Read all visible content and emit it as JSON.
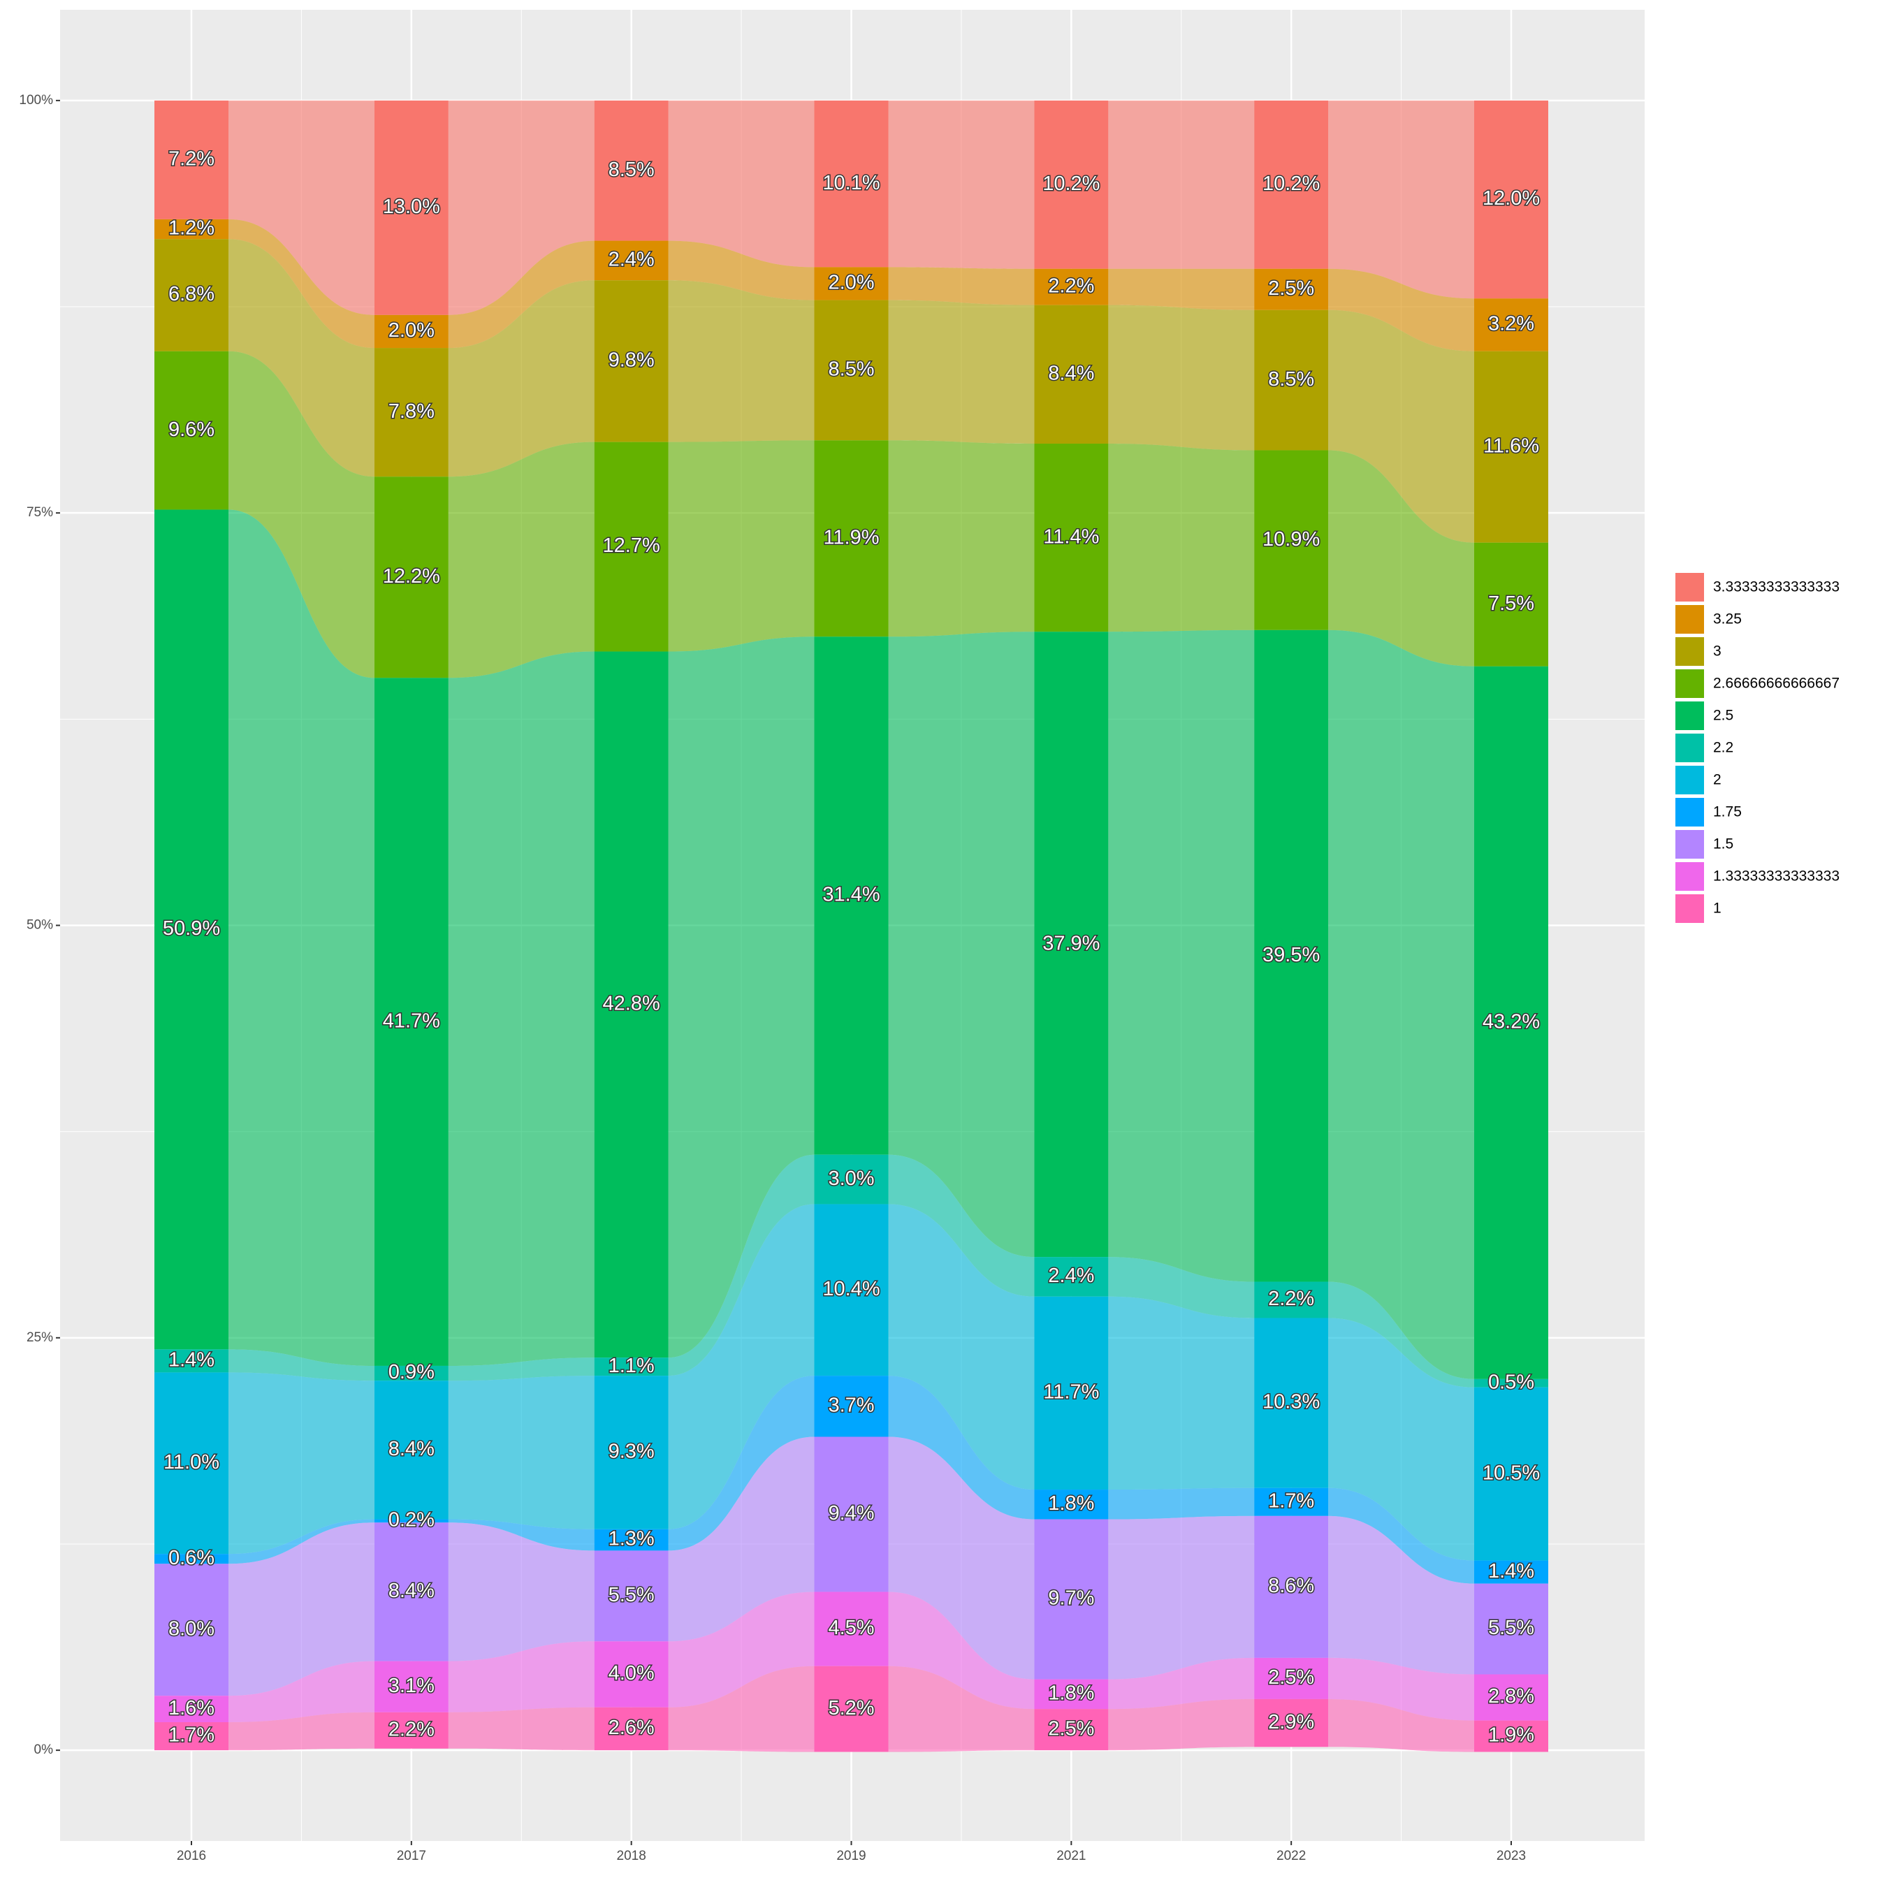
{
  "chart_data": {
    "type": "alluvial",
    "categories": [
      "2016",
      "2017",
      "2018",
      "2019",
      "2021",
      "2022",
      "2023"
    ],
    "ylim": [
      -5.5,
      105.5
    ],
    "yticks": [
      {
        "value": 0,
        "label": "0%"
      },
      {
        "value": 25,
        "label": "25%"
      },
      {
        "value": 50,
        "label": "50%"
      },
      {
        "value": 75,
        "label": "75%"
      },
      {
        "value": 100,
        "label": "100%"
      }
    ],
    "grid": true,
    "legend": "right",
    "series": [
      {
        "name": "3.33333333333333",
        "color": "#F8766D",
        "values": [
          7.2,
          13.0,
          8.5,
          10.1,
          10.2,
          10.2,
          12.0
        ],
        "value_labels": [
          "7.2%",
          "13.0%",
          "8.5%",
          "10.1%",
          "10.2%",
          "10.2%",
          "12.0%"
        ]
      },
      {
        "name": "3.25",
        "color": "#DB8E00",
        "values": [
          1.2,
          2.0,
          2.4,
          2.0,
          2.2,
          2.5,
          3.2
        ],
        "value_labels": [
          "1.2%",
          "2.0%",
          "2.4%",
          "2.0%",
          "2.2%",
          "2.5%",
          "3.2%"
        ]
      },
      {
        "name": "3",
        "color": "#AEA200",
        "values": [
          6.8,
          7.8,
          9.8,
          8.5,
          8.4,
          8.5,
          11.6
        ],
        "value_labels": [
          "6.8%",
          "7.8%",
          "9.8%",
          "8.5%",
          "8.4%",
          "8.5%",
          "11.6%"
        ]
      },
      {
        "name": "2.66666666666667",
        "color": "#64B200",
        "values": [
          9.6,
          12.2,
          12.7,
          11.9,
          11.4,
          10.9,
          7.5
        ],
        "value_labels": [
          "9.6%",
          "12.2%",
          "12.7%",
          "11.9%",
          "11.4%",
          "10.9%",
          "7.5%"
        ]
      },
      {
        "name": "2.5",
        "color": "#00BD5C",
        "values": [
          50.9,
          41.7,
          42.8,
          31.4,
          37.9,
          39.5,
          43.2
        ],
        "value_labels": [
          "50.9%",
          "41.7%",
          "42.8%",
          "31.4%",
          "37.9%",
          "39.5%",
          "43.2%"
        ]
      },
      {
        "name": "2.2",
        "color": "#00C1A7",
        "values": [
          1.4,
          0.9,
          1.1,
          3.0,
          2.4,
          2.2,
          0.5
        ],
        "value_labels": [
          "1.4%",
          "0.9%",
          "1.1%",
          "3.0%",
          "2.4%",
          "2.2%",
          "0.5%"
        ]
      },
      {
        "name": "2",
        "color": "#00BADE",
        "values": [
          11.0,
          8.4,
          9.3,
          10.4,
          11.7,
          10.3,
          10.5
        ],
        "value_labels": [
          "11.0%",
          "8.4%",
          "9.3%",
          "10.4%",
          "11.7%",
          "10.3%",
          "10.5%"
        ]
      },
      {
        "name": "1.75",
        "color": "#00A6FF",
        "values": [
          0.6,
          0.2,
          1.3,
          3.7,
          1.8,
          1.7,
          1.4
        ],
        "value_labels": [
          "0.6%",
          "0.2%",
          "1.3%",
          "3.7%",
          "1.8%",
          "1.7%",
          "1.4%"
        ]
      },
      {
        "name": "1.5",
        "color": "#B385FF",
        "values": [
          8.0,
          8.4,
          5.5,
          9.4,
          9.7,
          8.6,
          5.5
        ],
        "value_labels": [
          "8.0%",
          "8.4%",
          "5.5%",
          "9.4%",
          "9.7%",
          "8.6%",
          "5.5%"
        ]
      },
      {
        "name": "1.33333333333333",
        "color": "#EF67EB",
        "values": [
          1.6,
          3.1,
          4.0,
          4.5,
          1.8,
          2.5,
          2.8
        ],
        "value_labels": [
          "1.6%",
          "3.1%",
          "4.0%",
          "4.5%",
          "1.8%",
          "2.5%",
          "2.8%"
        ]
      },
      {
        "name": "1",
        "color": "#FF63B6",
        "values": [
          1.7,
          2.2,
          2.6,
          5.2,
          2.5,
          2.9,
          1.9
        ],
        "value_labels": [
          "1.7%",
          "2.2%",
          "2.6%",
          "5.2%",
          "2.5%",
          "2.9%",
          "1.9%"
        ]
      }
    ]
  }
}
